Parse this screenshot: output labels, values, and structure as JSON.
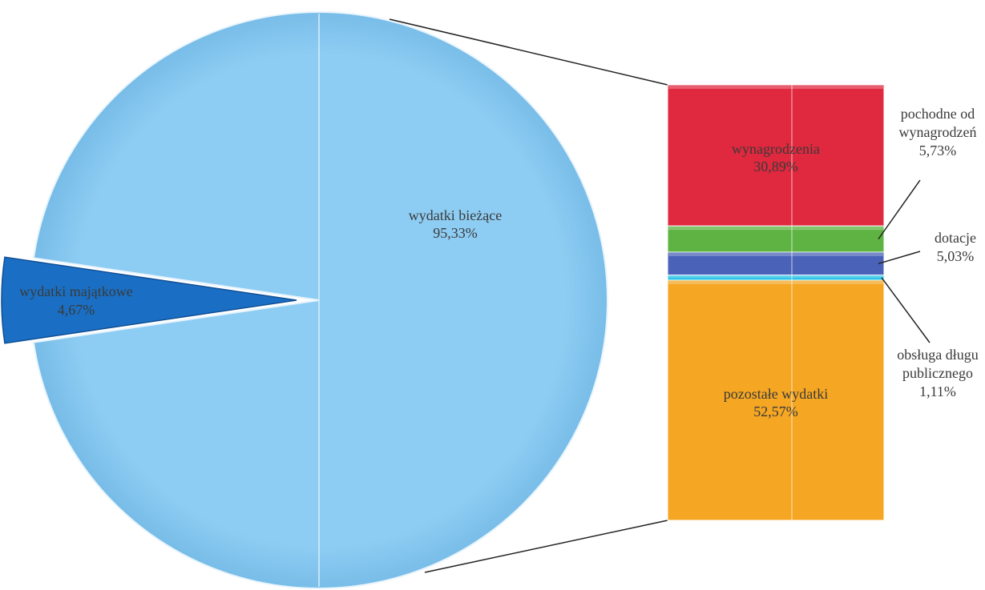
{
  "chart_data": {
    "type": "bar-of-pie",
    "title": "",
    "pie": {
      "slices": [
        {
          "name": "wydatki bieżące",
          "value": 95.33,
          "label": "95,33%",
          "color": "#8ecdf3"
        },
        {
          "name": "wydatki majątkowe",
          "value": 4.67,
          "label": "4,67%",
          "color": "#1a6fc4",
          "exploded": true
        }
      ]
    },
    "bar": {
      "parent": "wydatki bieżące",
      "segments": [
        {
          "name": "wynagrodzenia",
          "value": 30.89,
          "label": "30,89%",
          "color": "#e0283e",
          "label_position": "inside"
        },
        {
          "name_lines": [
            "pochodne od",
            "wynagrodzeń"
          ],
          "value": 5.73,
          "label": "5,73%",
          "color": "#5fb342",
          "label_position": "outside"
        },
        {
          "name": "dotacje",
          "value": 5.03,
          "label": "5,03%",
          "color": "#4a63b8",
          "label_position": "outside"
        },
        {
          "name_lines": [
            "obsługa długu",
            "publicznego"
          ],
          "value": 1.11,
          "label": "1,11%",
          "color": "#2ec4e6",
          "label_position": "outside"
        },
        {
          "name": "pozostałe wydatki",
          "value": 52.57,
          "label": "52,57%",
          "color": "#f5a623",
          "label_position": "inside"
        }
      ]
    }
  }
}
